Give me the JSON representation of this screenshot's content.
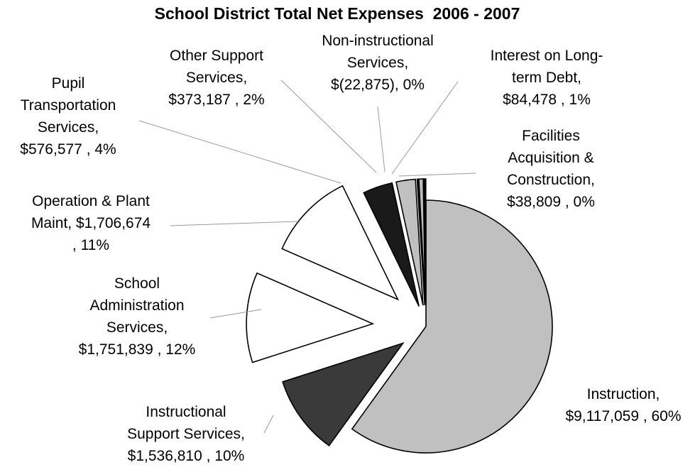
{
  "chart_data": {
    "type": "pie",
    "title": "School District Total Net Expenses  2006 - 2007",
    "slices": [
      {
        "name": "Instruction",
        "value": 9117059,
        "label_lines": [
          "Instruction,",
          "$9,117,059 , 60%"
        ],
        "color": "#c0c0c0"
      },
      {
        "name": "Instructional Support Services",
        "value": 1536810,
        "label_lines": [
          "Instructional",
          "Support Services,",
          "$1,536,810 , 10%"
        ],
        "color": "#3a3a3a"
      },
      {
        "name": "School Administration Services",
        "value": 1751839,
        "label_lines": [
          "School",
          "Administration",
          "Services,",
          "$1,751,839 , 12%"
        ],
        "color": "#ffffff"
      },
      {
        "name": "Operation & Plant Maint",
        "value": 1706674,
        "label_lines": [
          "Operation & Plant",
          "Maint,  $1,706,674",
          ", 11%"
        ],
        "color": "#ffffff"
      },
      {
        "name": "Pupil Transportation Services",
        "value": 576577,
        "label_lines": [
          "Pupil",
          "Transportation",
          "Services,",
          "$576,577 , 4%"
        ],
        "color": "#1a1a1a"
      },
      {
        "name": "Other Support Services",
        "value": 373187,
        "label_lines": [
          "Other Support",
          "Services,",
          "$373,187 , 2%"
        ],
        "color": "#c0c0c0"
      },
      {
        "name": "Non-instructional Services",
        "value": -22875,
        "label_lines": [
          "Non-instructional",
          "Services,",
          "$(22,875), 0%"
        ],
        "color": "#ffffff"
      },
      {
        "name": "Interest on Long-term Debt",
        "value": 84478,
        "label_lines": [
          "Interest on Long-",
          "term Debt,",
          "$84,478 , 1%"
        ],
        "color": "#bdbdbd"
      },
      {
        "name": "Facilities Acquisition & Construction",
        "value": 38809,
        "label_lines": [
          "Facilities",
          "Acquisition &",
          "Construction,",
          "$38,809 , 0%"
        ],
        "color": "#111111"
      }
    ]
  }
}
